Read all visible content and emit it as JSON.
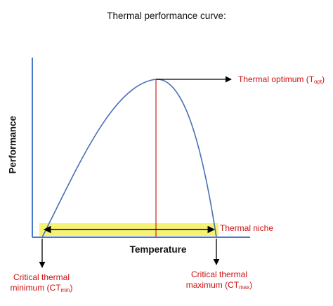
{
  "diagram": {
    "title": "Thermal performance curve:",
    "y_axis_label": "Performance",
    "x_axis_label": "Temperature",
    "optimum": {
      "text": "Thermal optimum (T",
      "sub": "opt",
      "close": ")"
    },
    "niche": {
      "text": "Thermal niche"
    },
    "ct_min": {
      "line1": "Critical thermal",
      "line2": "minimum (CT",
      "sub": "min",
      "close": ")"
    },
    "ct_max": {
      "line1": "Critical thermal",
      "line2": "maximum (CT",
      "sub": "max",
      "close": ")"
    },
    "colors": {
      "curve": "#4a6fb5",
      "axes": "#4a78c8",
      "optimum_line": "#cc2222",
      "niche_band": "#f5f05a",
      "label_red": "#cc1111",
      "arrows": "#000000"
    }
  }
}
